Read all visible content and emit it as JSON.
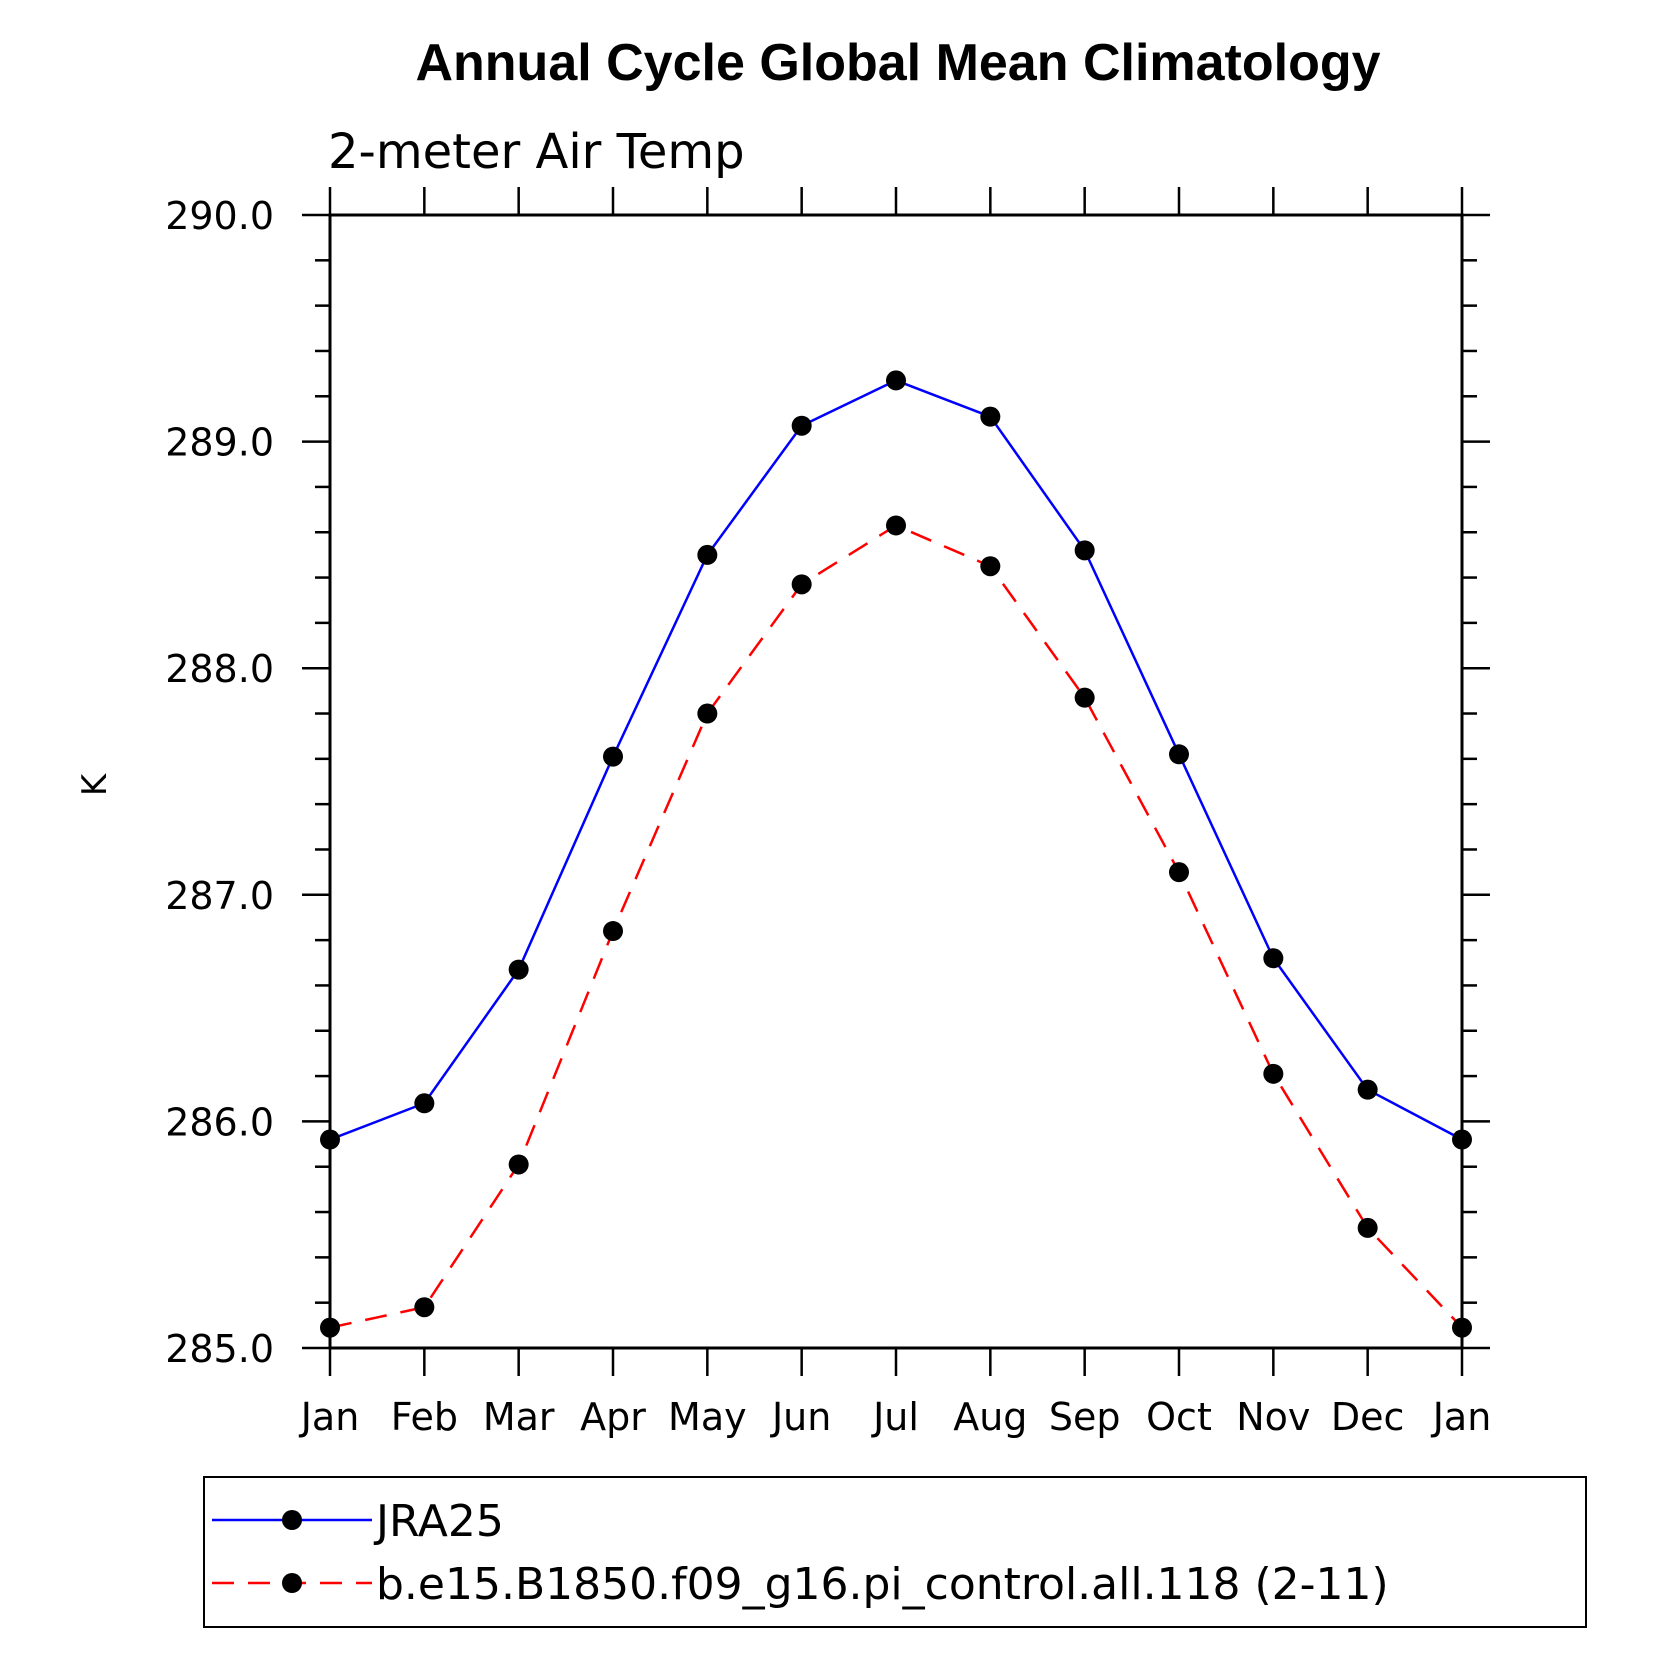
{
  "chart_data": {
    "type": "line",
    "title": "Annual Cycle Global Mean Climatology",
    "subtitle": "2-meter Air Temp",
    "xlabel": "",
    "ylabel": "K",
    "categories": [
      "Jan",
      "Feb",
      "Mar",
      "Apr",
      "May",
      "Jun",
      "Jul",
      "Aug",
      "Sep",
      "Oct",
      "Nov",
      "Dec",
      "Jan"
    ],
    "ylim": [
      285.0,
      290.0
    ],
    "yticks": [
      "285.0",
      "286.0",
      "287.0",
      "288.0",
      "289.0",
      "290.0"
    ],
    "grid": false,
    "legend_position": "bottom",
    "series": [
      {
        "name": "JRA25",
        "color": "#0000ff",
        "dash": "solid",
        "values": [
          285.92,
          286.08,
          286.67,
          287.61,
          288.5,
          289.07,
          289.27,
          289.11,
          288.52,
          287.62,
          286.72,
          286.14,
          285.92
        ]
      },
      {
        "name": "b.e15.B1850.f09_g16.pi_control.all.118 (2-11)",
        "color": "#ff0000",
        "dash": "dashed",
        "values": [
          285.09,
          285.18,
          285.81,
          286.84,
          287.8,
          288.37,
          288.63,
          288.45,
          287.87,
          287.1,
          286.21,
          285.53,
          285.09
        ]
      }
    ]
  }
}
